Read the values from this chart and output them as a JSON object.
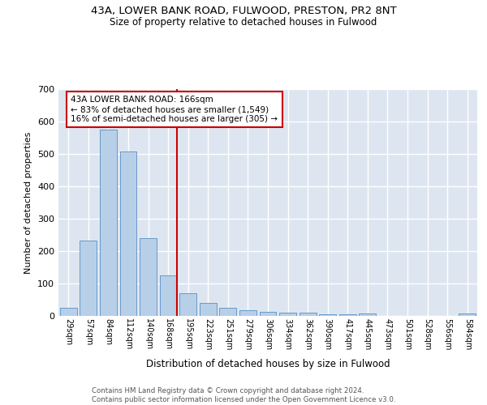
{
  "title1": "43A, LOWER BANK ROAD, FULWOOD, PRESTON, PR2 8NT",
  "title2": "Size of property relative to detached houses in Fulwood",
  "xlabel": "Distribution of detached houses by size in Fulwood",
  "ylabel": "Number of detached properties",
  "categories": [
    "29sqm",
    "57sqm",
    "84sqm",
    "112sqm",
    "140sqm",
    "168sqm",
    "195sqm",
    "223sqm",
    "251sqm",
    "279sqm",
    "306sqm",
    "334sqm",
    "362sqm",
    "390sqm",
    "417sqm",
    "445sqm",
    "473sqm",
    "501sqm",
    "528sqm",
    "556sqm",
    "584sqm"
  ],
  "values": [
    25,
    233,
    575,
    508,
    240,
    125,
    70,
    40,
    25,
    18,
    12,
    10,
    10,
    6,
    5,
    8,
    0,
    0,
    0,
    0,
    7
  ],
  "bar_color": "#b8cfe8",
  "bar_edge_color": "#6699cc",
  "annotation_text": "43A LOWER BANK ROAD: 166sqm\n← 83% of detached houses are smaller (1,549)\n16% of semi-detached houses are larger (305) →",
  "annotation_box_color": "#ffffff",
  "annotation_box_edge": "#cc0000",
  "redline_color": "#cc0000",
  "background_color": "#dde6f0",
  "grid_color": "#ffffff",
  "footer": "Contains HM Land Registry data © Crown copyright and database right 2024.\nContains public sector information licensed under the Open Government Licence v3.0.",
  "ylim": [
    0,
    700
  ],
  "yticks": [
    0,
    100,
    200,
    300,
    400,
    500,
    600,
    700
  ]
}
